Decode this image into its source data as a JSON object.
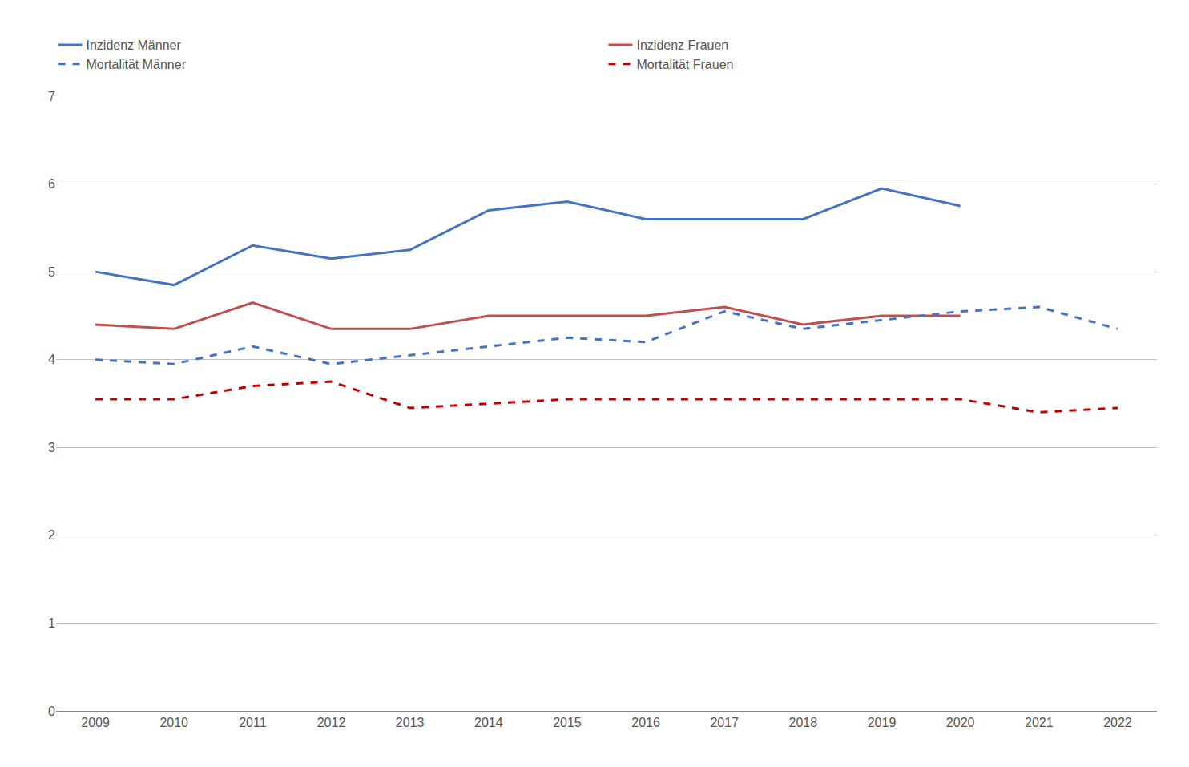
{
  "chart_data": {
    "type": "line",
    "x": [
      2009,
      2010,
      2011,
      2012,
      2013,
      2014,
      2015,
      2016,
      2017,
      2018,
      2019,
      2020,
      2021,
      2022
    ],
    "series": [
      {
        "name": "Inzidenz Männer",
        "color": "#4472C4",
        "line_style": "solid",
        "values": [
          5.0,
          4.85,
          5.3,
          5.15,
          5.25,
          5.7,
          5.8,
          5.6,
          5.6,
          5.6,
          5.95,
          5.75,
          null,
          null
        ]
      },
      {
        "name": "Inzidenz Frauen",
        "color": "#C0504D",
        "line_style": "solid",
        "values": [
          4.4,
          4.35,
          4.65,
          4.35,
          4.35,
          4.5,
          4.5,
          4.5,
          4.6,
          4.4,
          4.5,
          4.5,
          null,
          null
        ]
      },
      {
        "name": "Mortalität Männer",
        "color": "#4472C4",
        "line_style": "dashed",
        "values": [
          4.0,
          3.95,
          4.15,
          3.95,
          4.05,
          4.15,
          4.25,
          4.2,
          4.55,
          4.35,
          4.45,
          4.55,
          4.6,
          4.35
        ]
      },
      {
        "name": "Mortalität Frauen",
        "color": "#C00000",
        "line_style": "dashed",
        "values": [
          3.55,
          3.55,
          3.7,
          3.75,
          3.45,
          3.5,
          3.55,
          3.55,
          3.55,
          3.55,
          3.55,
          3.55,
          3.4,
          3.45
        ]
      }
    ],
    "xlim": [
      2008.5,
      2022.5
    ],
    "xticks": [
      2009,
      2010,
      2011,
      2012,
      2013,
      2014,
      2015,
      2016,
      2017,
      2018,
      2019,
      2020,
      2021,
      2022
    ],
    "ylim": [
      0,
      7
    ],
    "yticks": [
      0,
      1,
      2,
      3,
      4,
      5,
      6,
      7
    ],
    "grid": true,
    "legend": "top"
  }
}
